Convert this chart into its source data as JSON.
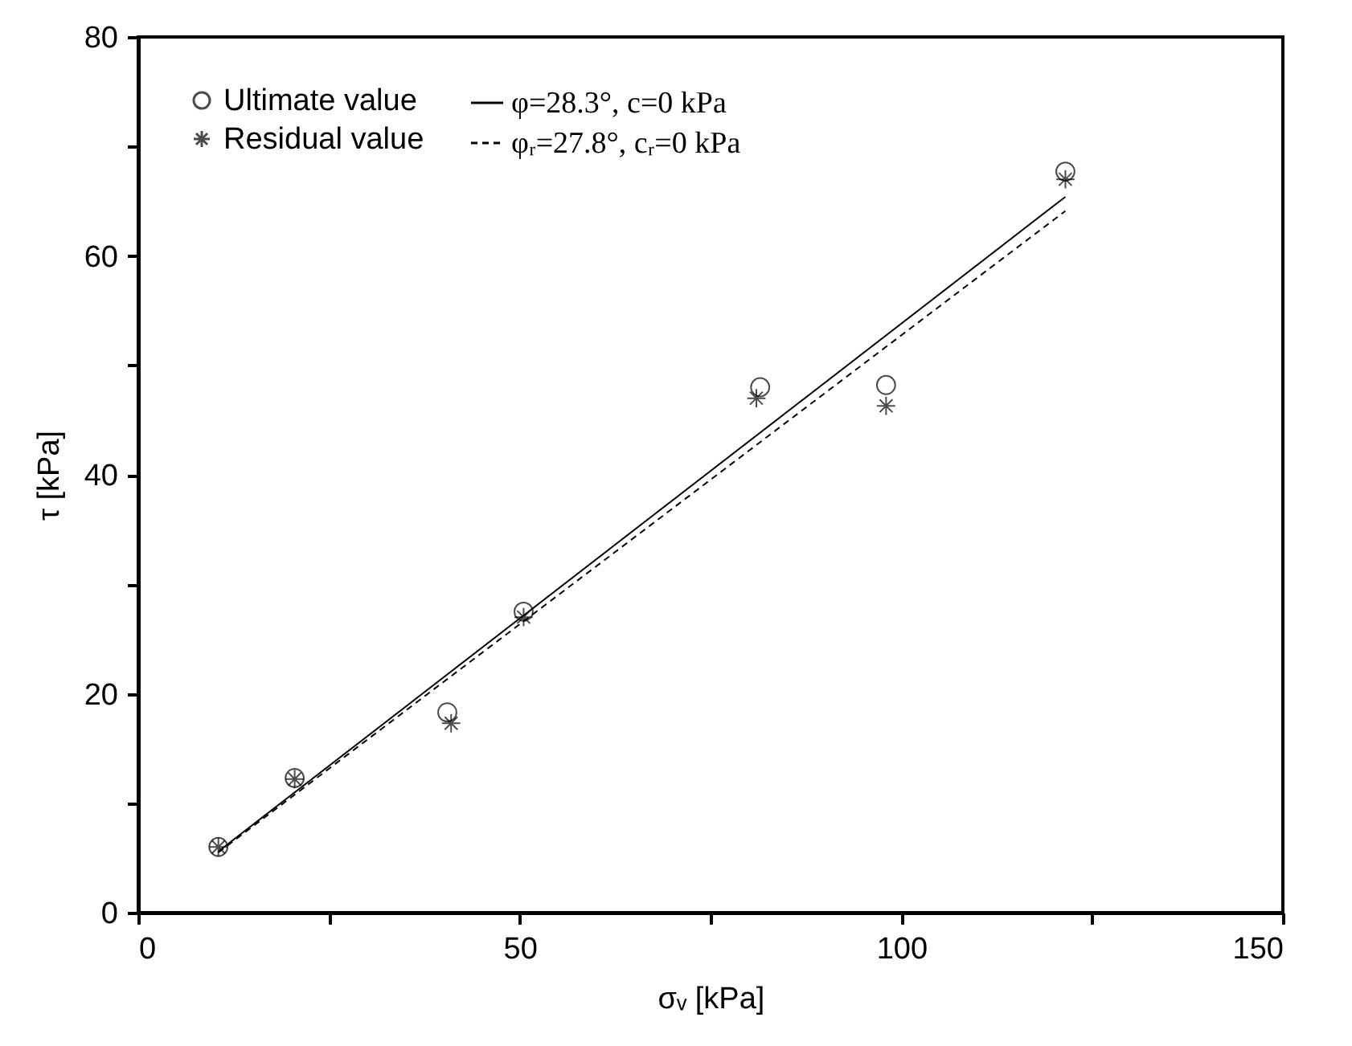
{
  "chart_data": {
    "type": "scatter",
    "xlabel": "σᵥ [kPa]",
    "ylabel": "τ [kPa]",
    "xlim": [
      0,
      150
    ],
    "xticks": [
      0,
      {
        "value": 25,
        "label": null
      },
      50,
      {
        "value": 75,
        "label": null
      },
      100,
      {
        "value": 125,
        "label": null
      },
      150
    ],
    "ylim": [
      0,
      80
    ],
    "yticks": [
      0,
      {
        "value": 10,
        "label": null
      },
      20,
      {
        "value": 30,
        "label": null
      },
      40,
      {
        "value": 50,
        "label": null
      },
      60,
      {
        "value": 70,
        "label": null
      },
      80
    ],
    "grid": false,
    "legend": "top left",
    "series": [
      {
        "name": "Ultimate value",
        "marker": "circle",
        "color": "#000000",
        "x": [
          10.5,
          20.5,
          40.5,
          50.5,
          81.5,
          98,
          121.5
        ],
        "values": [
          6,
          12.3,
          18.3,
          27.5,
          48,
          48.2,
          67.7
        ]
      },
      {
        "name": "Residual value",
        "marker": "cross",
        "color": "#000000",
        "x": [
          10.5,
          20.5,
          41,
          50.5,
          81,
          98,
          121.5
        ],
        "values": [
          6,
          12.2,
          17.3,
          27,
          47,
          46.3,
          67
        ]
      },
      {
        "name": "φ=28.3°, c=0 kPa",
        "type": "line",
        "line_style": "solid",
        "color": "#000000",
        "x": [
          10.5,
          121.5
        ],
        "values": [
          5.6,
          65.4
        ]
      },
      {
        "name": "φᵣ=27.8°, cᵣ=0 kPa",
        "type": "line",
        "line_style": "dashed",
        "color": "#000000",
        "x": [
          10.5,
          121.5
        ],
        "values": [
          5.5,
          64.1
        ]
      }
    ]
  }
}
